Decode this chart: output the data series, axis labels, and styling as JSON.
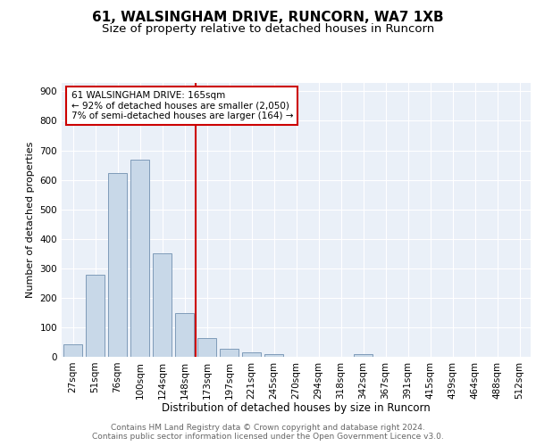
{
  "title1": "61, WALSINGHAM DRIVE, RUNCORN, WA7 1XB",
  "title2": "Size of property relative to detached houses in Runcorn",
  "xlabel": "Distribution of detached houses by size in Runcorn",
  "ylabel": "Number of detached properties",
  "categories": [
    "27sqm",
    "51sqm",
    "76sqm",
    "100sqm",
    "124sqm",
    "148sqm",
    "173sqm",
    "197sqm",
    "221sqm",
    "245sqm",
    "270sqm",
    "294sqm",
    "318sqm",
    "342sqm",
    "367sqm",
    "391sqm",
    "415sqm",
    "439sqm",
    "464sqm",
    "488sqm",
    "512sqm"
  ],
  "bar_heights": [
    42,
    278,
    622,
    668,
    350,
    148,
    65,
    28,
    15,
    10,
    0,
    0,
    0,
    8,
    0,
    0,
    0,
    0,
    0,
    0,
    0
  ],
  "bar_color": "#c8d8e8",
  "bar_edge_color": "#7090b0",
  "vline_color": "#cc0000",
  "annotation_text": "61 WALSINGHAM DRIVE: 165sqm\n← 92% of detached houses are smaller (2,050)\n7% of semi-detached houses are larger (164) →",
  "annotation_box_color": "#cc0000",
  "ylim": [
    0,
    930
  ],
  "yticks": [
    0,
    100,
    200,
    300,
    400,
    500,
    600,
    700,
    800,
    900
  ],
  "background_color": "#eaf0f8",
  "grid_color": "#ffffff",
  "footer_text": "Contains HM Land Registry data © Crown copyright and database right 2024.\nContains public sector information licensed under the Open Government Licence v3.0.",
  "title1_fontsize": 11,
  "title2_fontsize": 9.5,
  "xlabel_fontsize": 8.5,
  "ylabel_fontsize": 8,
  "tick_fontsize": 7.5,
  "annotation_fontsize": 7.5,
  "footer_fontsize": 6.5
}
